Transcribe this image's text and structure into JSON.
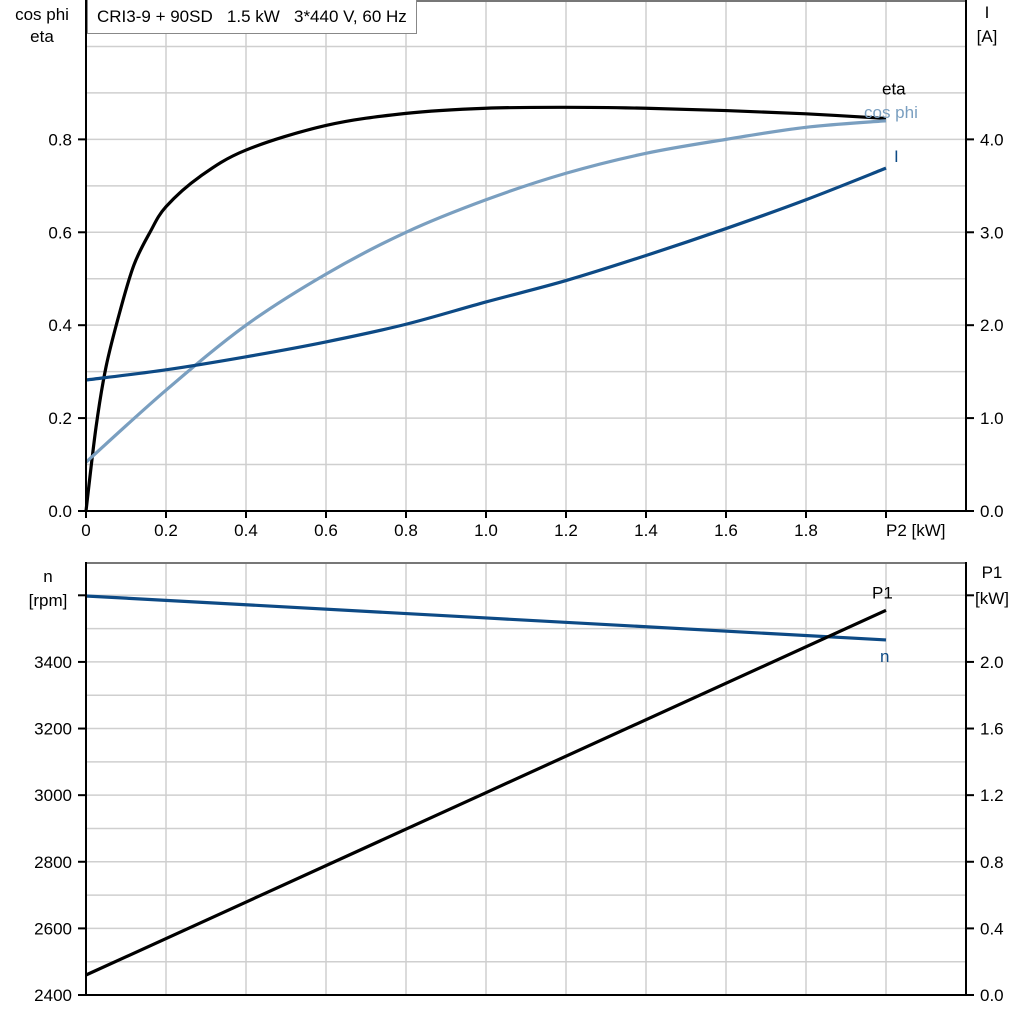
{
  "title": "CRI3-9 + 90SD   1.5 kW   3*440 V, 60 Hz",
  "chart_data": [
    {
      "type": "line",
      "name_panel": "top",
      "xlabel": "P2 [kW]",
      "xlim": [
        0,
        2.2
      ],
      "x_ticks": [
        "0",
        "0.2",
        "0.4",
        "0.6",
        "0.8",
        "1.0",
        "1.2",
        "1.4",
        "1.6",
        "1.8"
      ],
      "ylabel_left": [
        "cos phi",
        "eta"
      ],
      "ylim_left": [
        0,
        1.1
      ],
      "y_ticks_left": [
        "0.0",
        "0.2",
        "0.4",
        "0.6",
        "0.8"
      ],
      "ylabel_right": [
        "I",
        "[A]"
      ],
      "ylim_right": [
        0,
        5.5
      ],
      "y_ticks_right": [
        "0.0",
        "1.0",
        "2.0",
        "3.0",
        "4.0"
      ],
      "grid": true,
      "series": [
        {
          "name": "eta",
          "axis": "left",
          "color": "#000000",
          "x": [
            0,
            0.025,
            0.05,
            0.085,
            0.12,
            0.16,
            0.2,
            0.285,
            0.4,
            0.6,
            0.8,
            1.0,
            1.2,
            1.4,
            1.6,
            1.8,
            2.0
          ],
          "y": [
            0,
            0.18,
            0.31,
            0.43,
            0.53,
            0.6,
            0.655,
            0.72,
            0.777,
            0.83,
            0.856,
            0.867,
            0.869,
            0.867,
            0.862,
            0.855,
            0.845
          ]
        },
        {
          "name": "cos phi",
          "axis": "left",
          "color": "#7a9fc0",
          "x": [
            0,
            0.2,
            0.4,
            0.6,
            0.8,
            1.0,
            1.2,
            1.4,
            1.6,
            1.8,
            2.0
          ],
          "y": [
            0.105,
            0.26,
            0.4,
            0.51,
            0.6,
            0.67,
            0.727,
            0.77,
            0.8,
            0.826,
            0.84
          ]
        },
        {
          "name": "I",
          "axis": "right",
          "color": "#0d4a85",
          "x": [
            0,
            0.2,
            0.4,
            0.6,
            0.8,
            1.0,
            1.2,
            1.4,
            1.6,
            1.8,
            2.0
          ],
          "y": [
            1.41,
            1.52,
            1.66,
            1.82,
            2.01,
            2.25,
            2.48,
            2.75,
            3.04,
            3.35,
            3.69
          ]
        }
      ]
    },
    {
      "type": "line",
      "name_panel": "bottom",
      "xlim": [
        0,
        2.2
      ],
      "ylabel_left": [
        "n",
        "[rpm]"
      ],
      "ylim_left": [
        2400,
        3700
      ],
      "y_ticks_left": [
        "2400",
        "2600",
        "2800",
        "3000",
        "3200",
        "3400"
      ],
      "ylabel_right": [
        "P1",
        "[kW]"
      ],
      "ylim_right": [
        0,
        2.6
      ],
      "y_ticks_right": [
        "0.0",
        "0.4",
        "0.8",
        "1.2",
        "1.6",
        "2.0"
      ],
      "grid": true,
      "series": [
        {
          "name": "n",
          "axis": "left",
          "color": "#0d4a85",
          "x": [
            0,
            2.0
          ],
          "y": [
            3598,
            3466
          ]
        },
        {
          "name": "P1",
          "axis": "right",
          "color": "#000000",
          "x": [
            0,
            2.0
          ],
          "y": [
            0.12,
            2.31
          ]
        }
      ]
    }
  ]
}
